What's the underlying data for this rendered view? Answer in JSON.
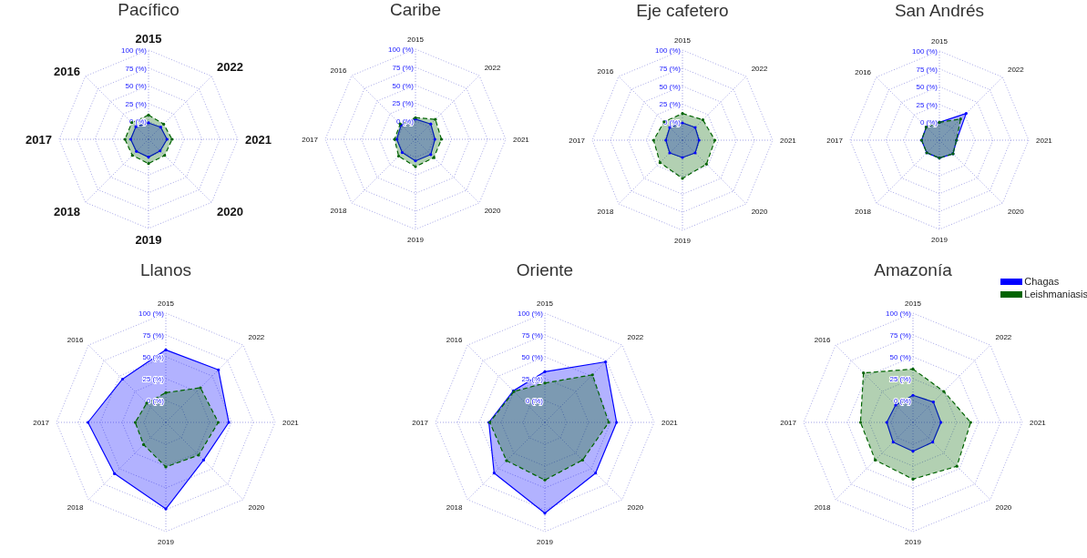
{
  "chart_data": [
    {
      "type": "radar",
      "title": "Pacífico",
      "categories": [
        "2015",
        "2022",
        "2021",
        "2020",
        "2019",
        "2018",
        "2017",
        "2016"
      ],
      "ylim": [
        -25,
        100
      ],
      "yticks": [
        {
          "value": 0,
          "label": "0 (%)"
        },
        {
          "value": 25,
          "label": "25 (%)"
        },
        {
          "value": 50,
          "label": "50 (%)"
        },
        {
          "value": 75,
          "label": "75 (%)"
        },
        {
          "value": 100,
          "label": "100 (%)"
        }
      ],
      "grid": true,
      "legend": false,
      "marker": "circle",
      "series": [
        {
          "color": "#0000ff",
          "line_style": "solid",
          "values": [
            -2,
            -1,
            1,
            -2,
            0,
            -1,
            0,
            0
          ]
        },
        {
          "color": "#006400",
          "line_style": "dashed",
          "values": [
            9,
            5,
            8,
            7,
            9,
            7,
            8,
            8
          ]
        }
      ]
    },
    {
      "type": "radar",
      "title": "Caribe",
      "categories": [
        "2015",
        "2022",
        "2021",
        "2020",
        "2019",
        "2018",
        "2017",
        "2016"
      ],
      "ylim": [
        -25,
        100
      ],
      "yticks": [
        {
          "value": 0,
          "label": "0 (%)"
        },
        {
          "value": 25,
          "label": "25 (%)"
        },
        {
          "value": 50,
          "label": "50 (%)"
        },
        {
          "value": 75,
          "label": "75 (%)"
        },
        {
          "value": 100,
          "label": "100 (%)"
        }
      ],
      "grid": true,
      "legend": false,
      "marker": "circle",
      "series": [
        {
          "color": "#0000ff",
          "line_style": "solid",
          "values": [
            3,
            5,
            2,
            5,
            5,
            1,
            1,
            3
          ]
        },
        {
          "color": "#006400",
          "line_style": "dashed",
          "values": [
            5,
            14,
            11,
            11,
            13,
            8,
            4,
            5
          ]
        }
      ]
    },
    {
      "type": "radar",
      "title": "Eje cafetero",
      "categories": [
        "2015",
        "2022",
        "2021",
        "2020",
        "2019",
        "2018",
        "2017",
        "2016"
      ],
      "ylim": [
        -25,
        100
      ],
      "yticks": [
        {
          "value": 0,
          "label": "0 (%)"
        },
        {
          "value": 25,
          "label": "25 (%)"
        },
        {
          "value": 50,
          "label": "50 (%)"
        },
        {
          "value": 75,
          "label": "75 (%)"
        },
        {
          "value": 100,
          "label": "100 (%)"
        }
      ],
      "grid": true,
      "legend": false,
      "marker": "circle",
      "series": [
        {
          "color": "#0000ff",
          "line_style": "solid",
          "values": [
            -1,
            0,
            -2,
            0,
            -1,
            0,
            -2,
            0
          ]
        },
        {
          "color": "#006400",
          "line_style": "dashed",
          "values": [
            12,
            15,
            20,
            22,
            28,
            19,
            15,
            11
          ]
        }
      ]
    },
    {
      "type": "radar",
      "title": "San Andrés",
      "categories": [
        "2015",
        "2022",
        "2021",
        "2020",
        "2019",
        "2018",
        "2017",
        "2016"
      ],
      "ylim": [
        -25,
        100
      ],
      "yticks": [
        {
          "value": 0,
          "label": "0 (%)"
        },
        {
          "value": 25,
          "label": "25 (%)"
        },
        {
          "value": 50,
          "label": "50 (%)"
        },
        {
          "value": 75,
          "label": "75 (%)"
        },
        {
          "value": 100,
          "label": "100 (%)"
        }
      ],
      "grid": true,
      "legend": false,
      "marker": "circle",
      "series": [
        {
          "color": "#0000ff",
          "line_style": "solid",
          "values": [
            0,
            28,
            -1,
            2,
            0,
            0,
            0,
            1
          ]
        },
        {
          "color": "#006400",
          "line_style": "dashed",
          "values": [
            0,
            17,
            -1,
            2,
            0,
            0,
            0,
            1
          ]
        }
      ]
    },
    {
      "type": "radar",
      "title": "Llanos",
      "categories": [
        "2015",
        "2022",
        "2021",
        "2020",
        "2019",
        "2018",
        "2017",
        "2016"
      ],
      "ylim": [
        -25,
        100
      ],
      "yticks": [
        {
          "value": 0,
          "label": "0 (%)"
        },
        {
          "value": 25,
          "label": "25 (%)"
        },
        {
          "value": 50,
          "label": "50 (%)"
        },
        {
          "value": 75,
          "label": "75 (%)"
        },
        {
          "value": 100,
          "label": "100 (%)"
        }
      ],
      "grid": true,
      "legend": false,
      "marker": "circle",
      "series": [
        {
          "color": "#0000ff",
          "line_style": "solid",
          "values": [
            58,
            60,
            47,
            36,
            74,
            58,
            64,
            45
          ]
        },
        {
          "color": "#006400",
          "line_style": "dashed",
          "values": [
            9,
            31,
            35,
            28,
            26,
            11,
            10,
            6
          ]
        }
      ]
    },
    {
      "type": "radar",
      "title": "Oriente",
      "categories": [
        "2015",
        "2022",
        "2021",
        "2020",
        "2019",
        "2018",
        "2017",
        "2016"
      ],
      "ylim": [
        -25,
        100
      ],
      "yticks": [
        {
          "value": 0,
          "label": "0 (%)"
        },
        {
          "value": 25,
          "label": "25 (%)"
        },
        {
          "value": 50,
          "label": "50 (%)"
        },
        {
          "value": 75,
          "label": "75 (%)"
        },
        {
          "value": 100,
          "label": "100 (%)"
        }
      ],
      "grid": true,
      "legend": false,
      "marker": "circle",
      "series": [
        {
          "color": "#0000ff",
          "line_style": "solid",
          "values": [
            33,
            73,
            57,
            57,
            79,
            57,
            39,
            26
          ]
        },
        {
          "color": "#006400",
          "line_style": "dashed",
          "values": [
            20,
            52,
            48,
            36,
            41,
            37,
            38,
            25
          ]
        }
      ]
    },
    {
      "type": "radar",
      "title": "Amazonía",
      "categories": [
        "2015",
        "2022",
        "2021",
        "2020",
        "2019",
        "2018",
        "2017",
        "2016"
      ],
      "ylim": [
        -25,
        100
      ],
      "yticks": [
        {
          "value": 0,
          "label": "0 (%)"
        },
        {
          "value": 25,
          "label": "25 (%)"
        },
        {
          "value": 50,
          "label": "50 (%)"
        },
        {
          "value": 75,
          "label": "75 (%)"
        },
        {
          "value": 100,
          "label": "100 (%)"
        }
      ],
      "grid": true,
      "legend": "top right",
      "marker": "circle",
      "series": [
        {
          "name": "Chagas",
          "color": "#0000ff",
          "line_style": "solid",
          "values": [
            6,
            8,
            7,
            7,
            8,
            7,
            5,
            3
          ]
        },
        {
          "name": "Leishmaniasis",
          "color": "#006400",
          "line_style": "dashed",
          "values": [
            36,
            25,
            41,
            46,
            40,
            36,
            35,
            55
          ]
        }
      ]
    }
  ]
}
